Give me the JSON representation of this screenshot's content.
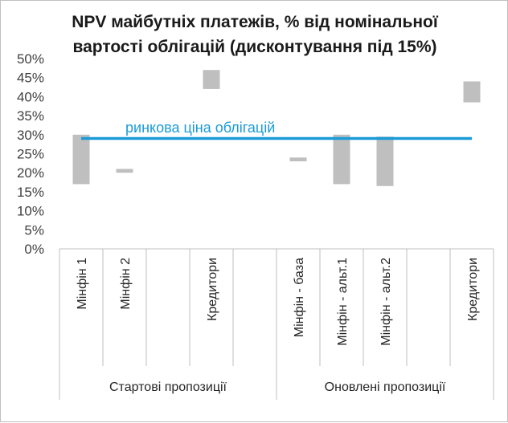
{
  "chart_data": {
    "type": "floating-bar",
    "title_lines": [
      "NPV майбутніх платежів, % від номінальної",
      "вартості облігацій (дисконтування під 15%)"
    ],
    "ylim": [
      0,
      50
    ],
    "yticks": [
      0,
      5,
      10,
      15,
      20,
      25,
      30,
      35,
      40,
      45,
      50
    ],
    "ytick_labels": [
      "0%",
      "5%",
      "10%",
      "15%",
      "20%",
      "25%",
      "30%",
      "35%",
      "40%",
      "45%",
      "50%"
    ],
    "categories": [
      "Мінфін 1",
      "Мінфін 2",
      "",
      "Кредитори",
      "",
      "Мінфін - база",
      "Мінфін - альт.1",
      "Мінфін - альт.2",
      "",
      "Кредитори"
    ],
    "bars": [
      {
        "low": 17,
        "high": 30
      },
      {
        "low": 20,
        "high": 21
      },
      null,
      {
        "low": 42,
        "high": 47
      },
      null,
      {
        "low": 23,
        "high": 24
      },
      {
        "low": 17,
        "high": 30
      },
      {
        "low": 16.5,
        "high": 29.5
      },
      null,
      {
        "low": 38.5,
        "high": 44
      }
    ],
    "groups": [
      {
        "label": "Стартові пропозиції",
        "start": 0,
        "count": 5
      },
      {
        "label": "Оновлені пропозиції",
        "start": 5,
        "count": 5
      }
    ],
    "reference_line": {
      "value": 29,
      "label": "ринкова ціна облігацій",
      "color": "#1a9bd7"
    },
    "bar_color": "#bfbfbf"
  }
}
